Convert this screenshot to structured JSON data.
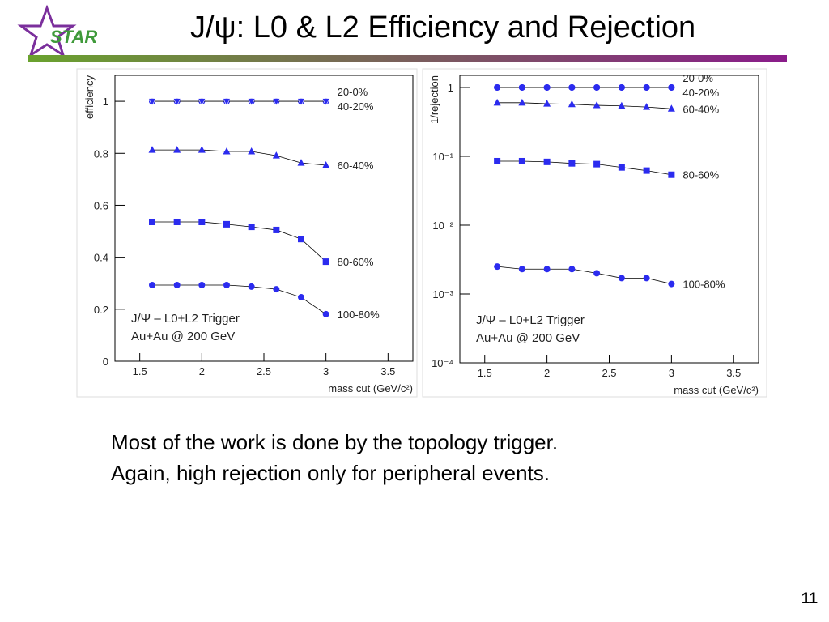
{
  "header": {
    "logo": "STAR",
    "title": "J/ψ: L0 & L2 Efficiency and Rejection"
  },
  "body": [
    "Most of the work is done by the topology trigger.",
    "Again, high rejection only for peripheral events."
  ],
  "page_number": "11",
  "chart_data": [
    {
      "type": "line",
      "x": [
        1.6,
        1.8,
        2.0,
        2.2,
        2.4,
        2.6,
        2.8,
        3.0
      ],
      "xlim": [
        1.3,
        3.7
      ],
      "xticks": [
        1.5,
        2,
        2.5,
        3,
        3.5
      ],
      "xlabel": "mass cut (GeV/c²)",
      "ylabel": "efficiency",
      "ylim": [
        0,
        1.1
      ],
      "yticks": [
        0,
        0.2,
        0.4,
        0.6,
        0.8,
        1
      ],
      "log_y": false,
      "annotations": [
        "J/Ψ – L0+L2 Trigger",
        "Au+Au @ 200 GeV"
      ],
      "series": [
        {
          "name": "20-0%",
          "color": "#2b2bef",
          "marker": "circle",
          "values": [
            1,
            1,
            1,
            1,
            1,
            1,
            1,
            1
          ]
        },
        {
          "name": "40-20%",
          "color": "#2b2bef",
          "marker": "triangle-down",
          "values": [
            1,
            1,
            1,
            1,
            1,
            1,
            1,
            1
          ]
        },
        {
          "name": "60-40%",
          "color": "#2b2bef",
          "marker": "triangle-up",
          "values": [
            0.813,
            0.813,
            0.813,
            0.807,
            0.807,
            0.791,
            0.763,
            0.754
          ]
        },
        {
          "name": "80-60%",
          "color": "#2b2bef",
          "marker": "square",
          "values": [
            0.536,
            0.536,
            0.536,
            0.527,
            0.517,
            0.505,
            0.47,
            0.383
          ]
        },
        {
          "name": "100-80%",
          "color": "#2b2bef",
          "marker": "circle",
          "values": [
            0.293,
            0.293,
            0.293,
            0.293,
            0.287,
            0.277,
            0.246,
            0.181
          ]
        }
      ]
    },
    {
      "type": "line",
      "x": [
        1.6,
        1.8,
        2.0,
        2.2,
        2.4,
        2.6,
        2.8,
        3.0
      ],
      "xlim": [
        1.3,
        3.7
      ],
      "xticks": [
        1.5,
        2,
        2.5,
        3,
        3.5
      ],
      "xlabel": "mass cut (GeV/c²)",
      "ylabel": "1/rejection",
      "ylim": [
        0.0001,
        1.5
      ],
      "yticks": [
        {
          "value": 0.0001,
          "label": "10⁻⁴"
        },
        {
          "value": 0.001,
          "label": "10⁻³"
        },
        {
          "value": 0.01,
          "label": "10⁻²"
        },
        {
          "value": 0.1,
          "label": "10⁻¹"
        },
        1
      ],
      "log_y": true,
      "annotations": [
        "J/Ψ – L0+L2 Trigger",
        "Au+Au @ 200 GeV"
      ],
      "series": [
        {
          "name": "20-0%",
          "color": "#2b2bef",
          "marker": "circle",
          "values": [
            1,
            1,
            1,
            1,
            1,
            1,
            1,
            1
          ]
        },
        {
          "name": "40-20%",
          "color": "#2b2bef",
          "marker": "circle",
          "values": [
            1,
            1,
            1,
            1,
            1,
            1,
            1,
            1
          ]
        },
        {
          "name": "60-40%",
          "color": "#2b2bef",
          "marker": "triangle-up",
          "values": [
            0.6,
            0.6,
            0.58,
            0.57,
            0.55,
            0.54,
            0.52,
            0.49
          ]
        },
        {
          "name": "80-60%",
          "color": "#2b2bef",
          "marker": "square",
          "values": [
            0.085,
            0.085,
            0.083,
            0.079,
            0.077,
            0.069,
            0.062,
            0.054
          ]
        },
        {
          "name": "100-80%",
          "color": "#2b2bef",
          "marker": "circle",
          "values": [
            0.0025,
            0.0023,
            0.0023,
            0.0023,
            0.002,
            0.0017,
            0.0017,
            0.0014
          ]
        }
      ]
    }
  ]
}
